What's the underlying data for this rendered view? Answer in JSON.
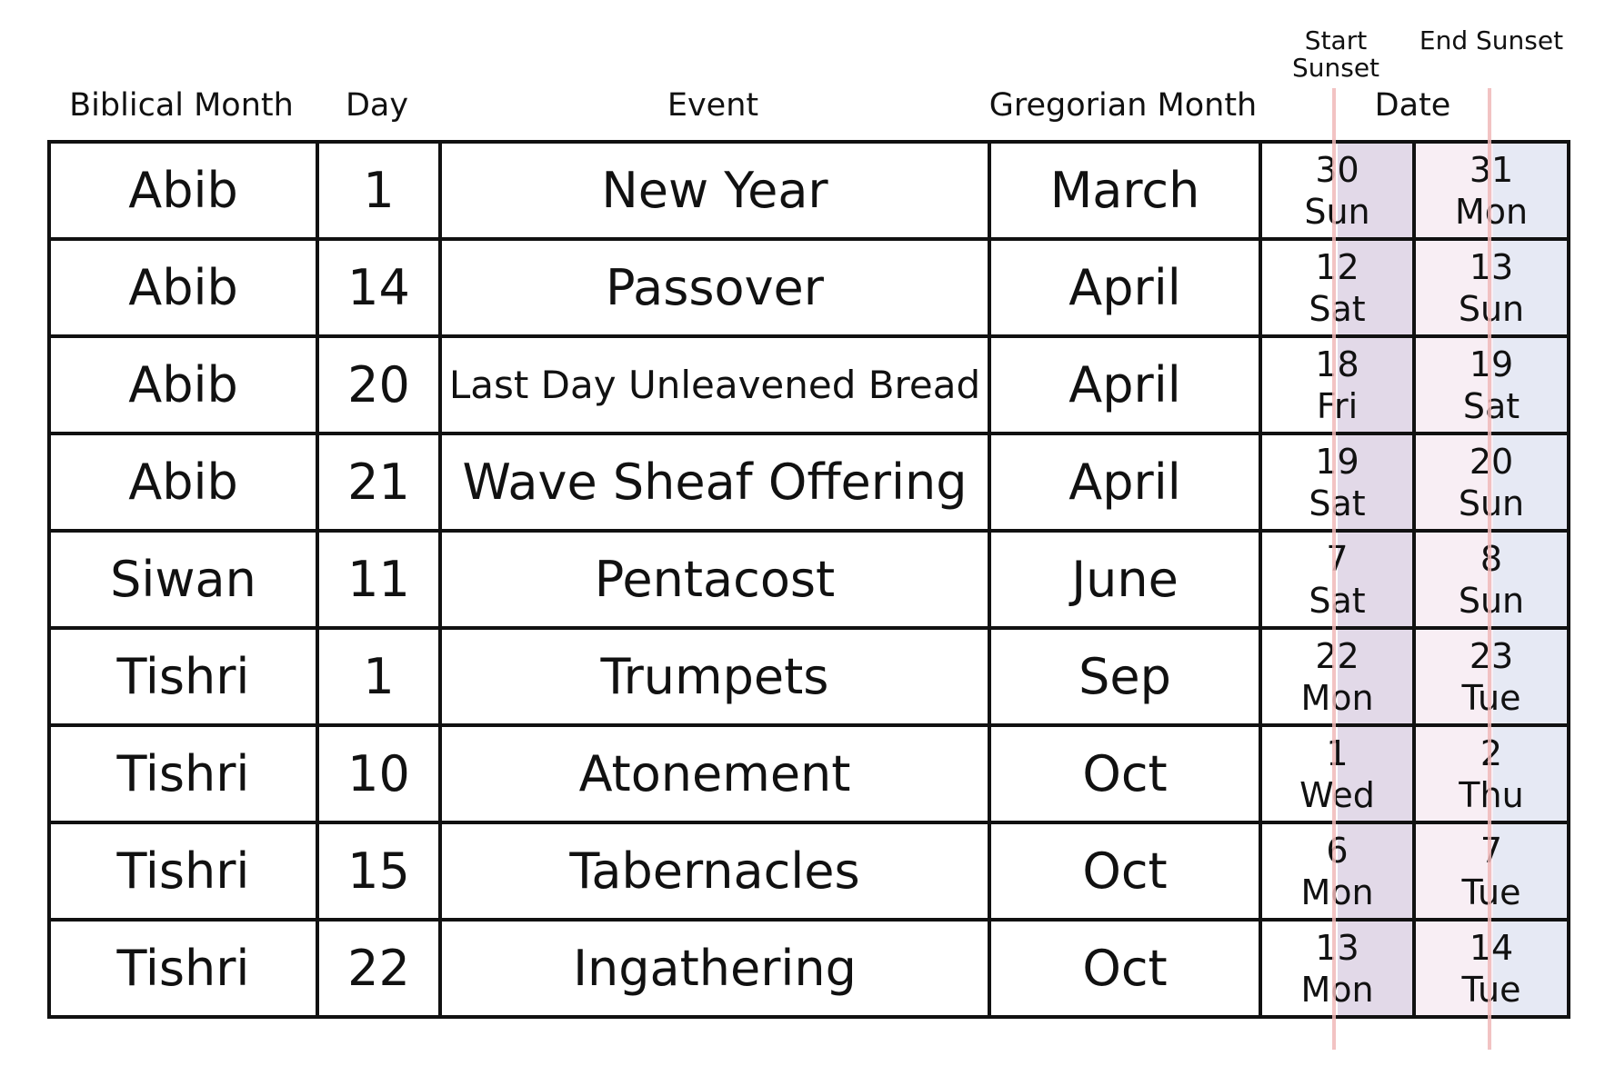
{
  "headers": {
    "biblical_month": "Biblical Month",
    "day": "Day",
    "event": "Event",
    "gregorian_month": "Gregorian Month",
    "date": "Date",
    "start_sunset": "Start Sunset",
    "end_sunset": "End Sunset"
  },
  "colors": {
    "start_shade": "#e2d9e8",
    "end_shade_left": "#f8eef4",
    "end_shade_right": "#e6e9f4",
    "sunset_line": "#f0b9b9"
  },
  "rows": [
    {
      "month": "Abib",
      "day": "1",
      "event": "New Year",
      "greg": "March",
      "start_date": "30",
      "start_dow": "Sun",
      "end_date": "31",
      "end_dow": "Mon"
    },
    {
      "month": "Abib",
      "day": "14",
      "event": "Passover",
      "greg": "April",
      "start_date": "12",
      "start_dow": "Sat",
      "end_date": "13",
      "end_dow": "Sun"
    },
    {
      "month": "Abib",
      "day": "20",
      "event": "Last Day Unleavened Bread",
      "greg": "April",
      "start_date": "18",
      "start_dow": "Fri",
      "end_date": "19",
      "end_dow": "Sat"
    },
    {
      "month": "Abib",
      "day": "21",
      "event": "Wave Sheaf Offering",
      "greg": "April",
      "start_date": "19",
      "start_dow": "Sat",
      "end_date": "20",
      "end_dow": "Sun"
    },
    {
      "month": "Siwan",
      "day": "11",
      "event": "Pentacost",
      "greg": "June",
      "start_date": "7",
      "start_dow": "Sat",
      "end_date": "8",
      "end_dow": "Sun"
    },
    {
      "month": "Tishri",
      "day": "1",
      "event": "Trumpets",
      "greg": "Sep",
      "start_date": "22",
      "start_dow": "Mon",
      "end_date": "23",
      "end_dow": "Tue"
    },
    {
      "month": "Tishri",
      "day": "10",
      "event": "Atonement",
      "greg": "Oct",
      "start_date": "1",
      "start_dow": "Wed",
      "end_date": "2",
      "end_dow": "Thu"
    },
    {
      "month": "Tishri",
      "day": "15",
      "event": "Tabernacles",
      "greg": "Oct",
      "start_date": "6",
      "start_dow": "Mon",
      "end_date": "7",
      "end_dow": "Tue"
    },
    {
      "month": "Tishri",
      "day": "22",
      "event": "Ingathering",
      "greg": "Oct",
      "start_date": "13",
      "start_dow": "Mon",
      "end_date": "14",
      "end_dow": "Tue"
    }
  ]
}
